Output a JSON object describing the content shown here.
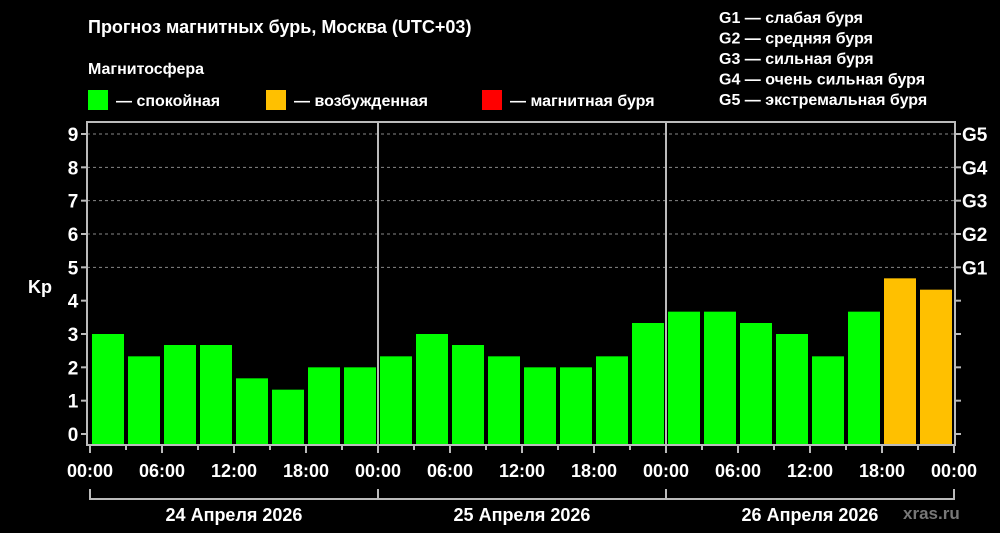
{
  "chart_data": {
    "type": "bar",
    "title": "Прогноз магнитных бурь, Москва (UTC+03)",
    "legend_title": "Магнитосфера",
    "legend": [
      {
        "label": "— спокойная",
        "color": "#00ff00"
      },
      {
        "label": "— возбужденная",
        "color": "#ffc000"
      },
      {
        "label": "— магнитная буря",
        "color": "#ff0000"
      }
    ],
    "storm_scale": [
      "G1 — слабая буря",
      "G2 — средняя буря",
      "G3 — сильная буря",
      "G4 — очень сильная буря",
      "G5 — экстремальная буря"
    ],
    "ylabel": "Kp",
    "ylim": [
      -0.33,
      9.36
    ],
    "yticks": [
      "0",
      "1",
      "2",
      "3",
      "4",
      "5",
      "6",
      "7",
      "8",
      "9"
    ],
    "right_ticks": [
      {
        "value": 5,
        "label": "G1"
      },
      {
        "value": 6,
        "label": "G2"
      },
      {
        "value": 7,
        "label": "G3"
      },
      {
        "value": 8,
        "label": "G4"
      },
      {
        "value": 9,
        "label": "G5"
      }
    ],
    "xtick_labels": [
      "00:00",
      "06:00",
      "12:00",
      "18:00",
      "00:00",
      "06:00",
      "12:00",
      "18:00",
      "00:00",
      "06:00",
      "12:00",
      "18:00",
      "00:00"
    ],
    "days": [
      "24 Апреля 2026",
      "25 Апреля 2026",
      "26 Апреля 2026"
    ],
    "interval_hours": 3,
    "grid": "dashed horizontal at 5–9",
    "values": [
      3,
      2.33,
      2.67,
      2.67,
      1.67,
      1.33,
      2,
      2,
      2.33,
      3,
      2.67,
      2.33,
      2,
      2,
      2.33,
      3.33,
      3.67,
      3.67,
      3.33,
      3,
      2.33,
      3.67,
      4.67,
      4.33
    ],
    "thresholds": {
      "quiet_below": 4,
      "storm_from": 5
    },
    "watermark": "xras.ru"
  }
}
